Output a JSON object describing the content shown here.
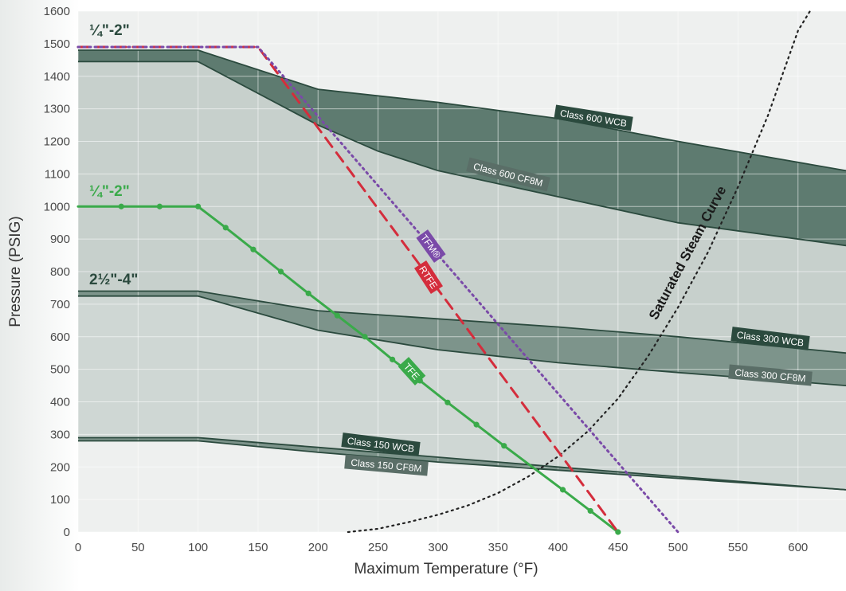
{
  "chart_data": {
    "type": "line",
    "xlabel": "Maximum Temperature (°F)",
    "ylabel": "Pressure (PSIG)",
    "xlim": [
      0,
      640
    ],
    "ylim": [
      0,
      1600
    ],
    "x_ticks": [
      "0",
      "50",
      "100",
      "150",
      "200",
      "250",
      "300",
      "350",
      "400",
      "450",
      "500",
      "550",
      "600"
    ],
    "y_ticks": [
      "0",
      "100",
      "200",
      "300",
      "400",
      "500",
      "600",
      "700",
      "800",
      "900",
      "1000",
      "1100",
      "1200",
      "1300",
      "1400",
      "1500",
      "1600"
    ],
    "grid": true,
    "colors": {
      "band_dark": "#5e7b70",
      "band_mid": "#7d948b",
      "band_fill_light": "#c7d0cc",
      "band_fill_lighter": "#dfe4e2",
      "band_fill_outer": "#eef0ef",
      "class_line": "#2b4a3e",
      "tfe": "#3aaa4a",
      "rtfe": "#d42d3c",
      "tfm": "#7a4aa8",
      "steam": "#222222"
    },
    "size_labels": [
      {
        "text": "¼\"-2\"",
        "color": "#2b4a3e"
      },
      {
        "text": "¼\"-2\"",
        "color": "#3aaa4a"
      },
      {
        "text": "2½\"-4\"",
        "color": "#2b4a3e"
      }
    ],
    "series": [
      {
        "name": "Class 600 WCB",
        "color": "#2b4a3e",
        "x": [
          0,
          100,
          200,
          300,
          400,
          500,
          640
        ],
        "y": [
          1480,
          1480,
          1360,
          1320,
          1270,
          1200,
          1110
        ]
      },
      {
        "name": "Class 600 CF8M",
        "color": "#2b4a3e",
        "x": [
          0,
          100,
          200,
          250,
          300,
          400,
          500,
          640
        ],
        "y": [
          1445,
          1445,
          1250,
          1170,
          1110,
          1030,
          950,
          880
        ]
      },
      {
        "name": "Class 300 WCB",
        "color": "#2b4a3e",
        "x": [
          0,
          100,
          200,
          300,
          400,
          500,
          640
        ],
        "y": [
          740,
          740,
          680,
          655,
          630,
          600,
          550
        ]
      },
      {
        "name": "Class 300 CF8M",
        "color": "#2b4a3e",
        "x": [
          0,
          100,
          200,
          300,
          400,
          500,
          640
        ],
        "y": [
          725,
          725,
          620,
          560,
          520,
          490,
          450
        ]
      },
      {
        "name": "Class 150 WCB",
        "color": "#2b4a3e",
        "x": [
          0,
          100,
          200,
          300,
          400,
          500,
          640
        ],
        "y": [
          290,
          290,
          260,
          230,
          200,
          170,
          130
        ]
      },
      {
        "name": "Class 150 CF8M",
        "color": "#2b4a3e",
        "x": [
          0,
          100,
          200,
          300,
          400,
          500,
          640
        ],
        "y": [
          280,
          280,
          245,
          215,
          190,
          165,
          130
        ]
      },
      {
        "name": "TFE",
        "color": "#3aaa4a",
        "style": "solid",
        "markers": true,
        "x": [
          0,
          36,
          68,
          100,
          123,
          146,
          169,
          192,
          216,
          239,
          262,
          285,
          308,
          332,
          355,
          404,
          427,
          450
        ],
        "y": [
          1000,
          1000,
          1000,
          1000,
          935,
          868,
          800,
          733,
          665,
          600,
          530,
          465,
          398,
          330,
          265,
          130,
          65,
          0
        ]
      },
      {
        "name": "RTFE",
        "color": "#d42d3c",
        "style": "dashed",
        "x": [
          0,
          150,
          450
        ],
        "y": [
          1490,
          1490,
          0
        ]
      },
      {
        "name": "TFM®",
        "color": "#7a4aa8",
        "style": "dotted",
        "x": [
          0,
          150,
          500
        ],
        "y": [
          1490,
          1490,
          0
        ]
      },
      {
        "name": "Saturated Steam Curve",
        "color": "#222222",
        "style": "dotted",
        "x": [
          225,
          250,
          275,
          300,
          325,
          350,
          375,
          400,
          425,
          450,
          475,
          500,
          525,
          550,
          575,
          600,
          610
        ],
        "y": [
          0,
          10,
          30,
          53,
          82,
          120,
          170,
          232,
          310,
          410,
          540,
          690,
          860,
          1060,
          1280,
          1540,
          1600
        ]
      }
    ],
    "annotations": [
      {
        "text": "Class 600 WCB"
      },
      {
        "text": "Class 600 CF8M"
      },
      {
        "text": "Class 300 WCB"
      },
      {
        "text": "Class 300 CF8M"
      },
      {
        "text": "Class 150 WCB"
      },
      {
        "text": "Class 150 CF8M"
      },
      {
        "text": "TFE"
      },
      {
        "text": "RTFE"
      },
      {
        "text": "TFM®"
      },
      {
        "text": "Saturated Steam Curve"
      }
    ]
  }
}
